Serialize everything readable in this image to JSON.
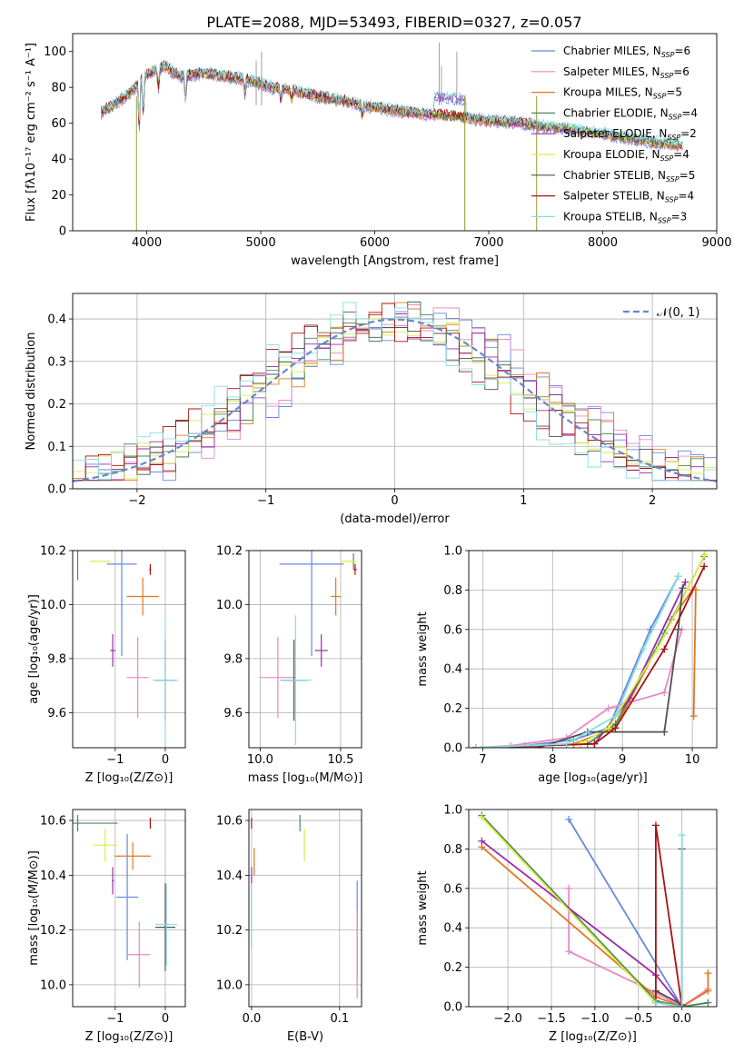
{
  "figure_title": "PLATE=2088, MJD=53493, FIBERID=0327, z=0.057",
  "colors": {
    "Chabrier MILES": "#6688dd",
    "Salpeter MILES": "#e888c8",
    "Kroupa MILES": "#e07820",
    "Chabrier ELODIE": "#4a8a5a",
    "Salpeter ELODIE": "#9a2aaa",
    "Kroupa ELODIE": "#d8ee44",
    "Chabrier STELIB": "#505050",
    "Salpeter STELIB": "#aa1111",
    "Kroupa STELIB": "#88dde4",
    "normal": "#6688cc",
    "grid": "#b0b0b0"
  },
  "legend_spectrum": [
    {
      "model": "Chabrier MILES",
      "label": "Chabrier MILES, N",
      "sub": "SSP",
      "tail": "=6"
    },
    {
      "model": "Salpeter MILES",
      "label": "Salpeter MILES, N",
      "sub": "SSP",
      "tail": "=6"
    },
    {
      "model": "Kroupa MILES",
      "label": "Kroupa MILES, N",
      "sub": "SSP",
      "tail": "=5"
    },
    {
      "model": "Chabrier ELODIE",
      "label": "Chabrier ELODIE, N",
      "sub": "SSP",
      "tail": "=4"
    },
    {
      "model": "Salpeter ELODIE",
      "label": "Salpeter ELODIE, N",
      "sub": "SSP",
      "tail": "=2"
    },
    {
      "model": "Kroupa ELODIE",
      "label": "Kroupa ELODIE, N",
      "sub": "SSP",
      "tail": "=4"
    },
    {
      "model": "Chabrier STELIB",
      "label": "Chabrier STELIB, N",
      "sub": "SSP",
      "tail": "=5"
    },
    {
      "model": "Salpeter STELIB",
      "label": "Salpeter STELIB, N",
      "sub": "SSP",
      "tail": "=4"
    },
    {
      "model": "Kroupa STELIB",
      "label": "Kroupa STELIB, N",
      "sub": "SSP",
      "tail": "=3"
    }
  ],
  "legend_normal": "𝒩(0, 1)",
  "chart_data": [
    {
      "id": "spectrum",
      "type": "line",
      "xlabel": "wavelength [Angstrom, rest frame]",
      "ylabel": "Flux [fλ10⁻¹⁷ erg cm⁻² s⁻¹ A⁻¹]",
      "xlim": [
        3350,
        9000
      ],
      "ylim": [
        0,
        110
      ],
      "xticks": [
        4000,
        5000,
        6000,
        7000,
        8000,
        9000
      ],
      "yticks": [
        0,
        20,
        40,
        60,
        80,
        100
      ],
      "grid": false,
      "legend": "right",
      "continuum": [
        [
          3600,
          66
        ],
        [
          3700,
          70
        ],
        [
          3800,
          74
        ],
        [
          3900,
          80
        ],
        [
          4000,
          87
        ],
        [
          4150,
          92
        ],
        [
          4300,
          86
        ],
        [
          4500,
          88
        ],
        [
          4700,
          86
        ],
        [
          4900,
          84
        ],
        [
          5100,
          80
        ],
        [
          5300,
          78
        ],
        [
          5500,
          75
        ],
        [
          5700,
          73
        ],
        [
          5900,
          70
        ],
        [
          6100,
          68
        ],
        [
          6300,
          66
        ],
        [
          6500,
          65
        ],
        [
          6700,
          64
        ],
        [
          6900,
          62
        ],
        [
          7100,
          61
        ],
        [
          7300,
          60
        ],
        [
          7500,
          58
        ],
        [
          7700,
          57
        ],
        [
          7900,
          55
        ],
        [
          8100,
          53
        ],
        [
          8300,
          51
        ],
        [
          8500,
          49
        ],
        [
          8700,
          48
        ]
      ],
      "deep_absorptions": [
        [
          3910,
          0
        ],
        [
          6790,
          0
        ],
        [
          7420,
          0
        ]
      ]
    },
    {
      "id": "residuals",
      "type": "area",
      "xlabel": "(data-model)/error",
      "ylabel": "Normed distribution",
      "xlim": [
        -2.5,
        2.5
      ],
      "ylim": [
        0,
        0.46
      ],
      "xticks": [
        -2,
        -1,
        0,
        1,
        2
      ],
      "yticks": [
        0.0,
        0.1,
        0.2,
        0.3,
        0.4
      ],
      "grid": true,
      "legend": "top-right",
      "bin_width": 0.1
    },
    {
      "id": "z_age",
      "type": "scatter",
      "xlabel": "Z [log₁₀(Z/Z⊙)]",
      "ylabel": "age  [log₁₀(age/yr)]",
      "xlim": [
        -1.85,
        0.4
      ],
      "ylim": [
        9.47,
        10.2
      ],
      "xticks": [
        -1,
        0
      ],
      "yticks": [
        9.6,
        9.8,
        10.0,
        10.2
      ],
      "grid": true,
      "points": [
        {
          "model": "Chabrier MILES",
          "x": -0.87,
          "y": 10.15,
          "xerr": 0.3,
          "yerr": 0.34
        },
        {
          "model": "Salpeter MILES",
          "x": -0.55,
          "y": 9.73,
          "xerr": 0.22,
          "yerr": 0.15
        },
        {
          "model": "Kroupa MILES",
          "x": -0.45,
          "y": 10.03,
          "xerr": 0.32,
          "yerr": 0.07
        },
        {
          "model": "Chabrier ELODIE",
          "x": -1.75,
          "y": 10.16,
          "xerr": 0.0,
          "yerr": 0.07
        },
        {
          "model": "Salpeter ELODIE",
          "x": -1.05,
          "y": 9.83,
          "xerr": 0.05,
          "yerr": 0.06
        },
        {
          "model": "Kroupa ELODIE",
          "x": -1.3,
          "y": 10.16,
          "xerr": 0.2,
          "yerr": 0.0
        },
        {
          "model": "Chabrier STELIB",
          "x": 0.0,
          "y": 9.72,
          "xerr": 0.2,
          "yerr": 0.15
        },
        {
          "model": "Salpeter STELIB",
          "x": -0.3,
          "y": 10.13,
          "xerr": 0.02,
          "yerr": 0.02
        },
        {
          "model": "Kroupa STELIB",
          "x": 0.0,
          "y": 9.72,
          "xerr": 0.25,
          "yerr": 0.24
        }
      ]
    },
    {
      "id": "mass_age",
      "type": "scatter",
      "xlabel": "mass [log₁₀(M/M⊙)]",
      "ylabel": "",
      "xlim": [
        9.93,
        10.63
      ],
      "ylim": [
        9.47,
        10.2
      ],
      "xticks": [
        10.0,
        10.5
      ],
      "yticks": [
        9.6,
        9.8,
        10.0,
        10.2
      ],
      "grid": true,
      "points": [
        {
          "model": "Chabrier MILES",
          "x": 10.32,
          "y": 10.15,
          "xerr": 0.2,
          "yerr": 0.34
        },
        {
          "model": "Salpeter MILES",
          "x": 10.11,
          "y": 9.73,
          "xerr": 0.11,
          "yerr": 0.15
        },
        {
          "model": "Kroupa MILES",
          "x": 10.47,
          "y": 10.03,
          "xerr": 0.03,
          "yerr": 0.07
        },
        {
          "model": "Chabrier ELODIE",
          "x": 10.58,
          "y": 10.16,
          "xerr": 0.0,
          "yerr": 0.03
        },
        {
          "model": "Salpeter ELODIE",
          "x": 10.38,
          "y": 9.83,
          "xerr": 0.04,
          "yerr": 0.06
        },
        {
          "model": "Kroupa ELODIE",
          "x": 10.55,
          "y": 10.16,
          "xerr": 0.05,
          "yerr": 0.0
        },
        {
          "model": "Chabrier STELIB",
          "x": 10.21,
          "y": 9.72,
          "xerr": 0.08,
          "yerr": 0.15
        },
        {
          "model": "Salpeter STELIB",
          "x": 10.59,
          "y": 10.13,
          "xerr": 0.01,
          "yerr": 0.02
        },
        {
          "model": "Kroupa STELIB",
          "x": 10.22,
          "y": 9.72,
          "xerr": 0.1,
          "yerr": 0.24
        }
      ]
    },
    {
      "id": "age_weight",
      "type": "line",
      "xlabel": "age  [log₁₀(age/yr)]",
      "ylabel": "mass weight",
      "xlim": [
        6.8,
        10.35
      ],
      "ylim": [
        0,
        1.0
      ],
      "xticks": [
        7,
        8,
        9,
        10
      ],
      "yticks": [
        0.0,
        0.2,
        0.4,
        0.6,
        0.8,
        1.0
      ],
      "grid": true,
      "series": [
        {
          "model": "Chabrier MILES",
          "x": [
            6.9,
            7.6,
            8.3,
            8.8,
            9.4,
            9.8
          ],
          "y": [
            0.0,
            0.01,
            0.04,
            0.1,
            0.6,
            0.87
          ]
        },
        {
          "model": "Salpeter MILES",
          "x": [
            6.9,
            7.4,
            8.2,
            8.8,
            9.6,
            9.85
          ],
          "y": [
            0.0,
            0.01,
            0.05,
            0.2,
            0.28,
            0.6
          ]
        },
        {
          "model": "Kroupa MILES",
          "x": [
            6.9,
            8.3,
            8.9,
            9.7,
            10.0,
            10.05,
            10.02
          ],
          "y": [
            0.0,
            0.02,
            0.1,
            0.65,
            0.8,
            0.8,
            0.16
          ]
        },
        {
          "model": "Chabrier ELODIE",
          "x": [
            6.9,
            8.5,
            8.9,
            9.6,
            10.17
          ],
          "y": [
            0.0,
            0.02,
            0.12,
            0.58,
            0.97
          ]
        },
        {
          "model": "Salpeter ELODIE",
          "x": [
            6.9,
            8.6,
            9.1,
            9.9
          ],
          "y": [
            0.0,
            0.02,
            0.25,
            0.84
          ]
        },
        {
          "model": "Kroupa ELODIE",
          "x": [
            6.9,
            8.4,
            8.8,
            9.5,
            10.18
          ],
          "y": [
            0.0,
            0.02,
            0.1,
            0.5,
            0.98
          ]
        },
        {
          "model": "Chabrier STELIB",
          "x": [
            6.9,
            7.8,
            8.5,
            9.6,
            9.8,
            9.86
          ],
          "y": [
            0.0,
            0.0,
            0.08,
            0.08,
            0.6,
            0.81
          ]
        },
        {
          "model": "Salpeter STELIB",
          "x": [
            6.9,
            8.6,
            8.9,
            9.6,
            10.17
          ],
          "y": [
            0.0,
            0.02,
            0.1,
            0.5,
            0.92
          ]
        },
        {
          "model": "Kroupa STELIB",
          "x": [
            6.9,
            8.2,
            8.9,
            9.3,
            9.8
          ],
          "y": [
            0.0,
            0.02,
            0.16,
            0.5,
            0.87
          ]
        }
      ]
    },
    {
      "id": "z_mass",
      "type": "scatter",
      "xlabel": "Z [log₁₀(Z/Z⊙)]",
      "ylabel": "mass [log₁₀(M/M⊙)]",
      "xlim": [
        -1.85,
        0.4
      ],
      "ylim": [
        9.92,
        10.64
      ],
      "xticks": [
        -1,
        0
      ],
      "yticks": [
        10.0,
        10.2,
        10.4,
        10.6
      ],
      "grid": true,
      "points": [
        {
          "model": "Chabrier MILES",
          "x": -0.76,
          "y": 10.32,
          "xerr": 0.22,
          "yerr": 0.23
        },
        {
          "model": "Salpeter MILES",
          "x": -0.52,
          "y": 10.11,
          "xerr": 0.22,
          "yerr": 0.12
        },
        {
          "model": "Kroupa MILES",
          "x": -0.65,
          "y": 10.47,
          "xerr": 0.36,
          "yerr": 0.05
        },
        {
          "model": "Chabrier ELODIE",
          "x": -1.75,
          "y": 10.59,
          "xerr": 0.8,
          "yerr": 0.03
        },
        {
          "model": "Salpeter ELODIE",
          "x": -1.05,
          "y": 10.38,
          "xerr": 0.02,
          "yerr": 0.05
        },
        {
          "model": "Kroupa ELODIE",
          "x": -1.2,
          "y": 10.51,
          "xerr": 0.24,
          "yerr": 0.06
        },
        {
          "model": "Chabrier STELIB",
          "x": 0.0,
          "y": 10.21,
          "xerr": 0.2,
          "yerr": 0.16
        },
        {
          "model": "Salpeter STELIB",
          "x": -0.3,
          "y": 10.59,
          "xerr": 0.01,
          "yerr": 0.02
        },
        {
          "model": "Kroupa STELIB",
          "x": 0.02,
          "y": 10.22,
          "xerr": 0.22,
          "yerr": 0.15
        }
      ]
    },
    {
      "id": "ebv_mass",
      "type": "scatter",
      "xlabel": "E(B-V)",
      "ylabel": "",
      "xlim": [
        -0.003,
        0.125
      ],
      "ylim": [
        9.92,
        10.64
      ],
      "xticks": [
        0.0,
        0.1
      ],
      "yticks": [
        10.0,
        10.2,
        10.4,
        10.6
      ],
      "grid": true,
      "points": [
        {
          "model": "Chabrier MILES",
          "x": 0.12,
          "y": 10.2,
          "xerr": 0.0,
          "yerr": 0.18
        },
        {
          "model": "Salpeter MILES",
          "x": 0.12,
          "y": 10.11,
          "xerr": 0.0,
          "yerr": 0.16
        },
        {
          "model": "Kroupa MILES",
          "x": 0.003,
          "y": 10.45,
          "xerr": 0.0,
          "yerr": 0.05
        },
        {
          "model": "Chabrier ELODIE",
          "x": 0.055,
          "y": 10.59,
          "xerr": 0.0,
          "yerr": 0.03
        },
        {
          "model": "Salpeter ELODIE",
          "x": 0.0,
          "y": 10.38,
          "xerr": 0.0,
          "yerr": 0.05
        },
        {
          "model": "Kroupa ELODIE",
          "x": 0.06,
          "y": 10.51,
          "xerr": 0.0,
          "yerr": 0.06
        },
        {
          "model": "Chabrier STELIB",
          "x": 0.0,
          "y": 10.23,
          "xerr": 0.0,
          "yerr": 0.1
        },
        {
          "model": "Salpeter STELIB",
          "x": 0.0,
          "y": 10.59,
          "xerr": 0.0,
          "yerr": 0.02
        },
        {
          "model": "Kroupa STELIB",
          "x": 0.0,
          "y": 10.25,
          "xerr": 0.0,
          "yerr": 0.12
        }
      ]
    },
    {
      "id": "z_weight",
      "type": "line",
      "xlabel": "Z [log₁₀(Z/Z⊙)]",
      "ylabel": "mass weight",
      "xlim": [
        -2.45,
        0.4
      ],
      "ylim": [
        0,
        1.0
      ],
      "xticks": [
        -2.0,
        -1.5,
        -1.0,
        -0.5,
        0.0
      ],
      "yticks": [
        0.0,
        0.2,
        0.4,
        0.6,
        0.8,
        1.0
      ],
      "grid": true,
      "series": [
        {
          "model": "Chabrier MILES",
          "x": [
            -1.3,
            0.0
          ],
          "y": [
            0.95,
            0.0
          ]
        },
        {
          "model": "Salpeter MILES",
          "x": [
            -1.3,
            -1.3,
            -0.3,
            0.0,
            0.3
          ],
          "y": [
            0.6,
            0.28,
            0.07,
            0.0,
            0.09
          ]
        },
        {
          "model": "Kroupa MILES",
          "x": [
            -2.3,
            -0.3,
            0.0,
            0.3,
            0.3
          ],
          "y": [
            0.81,
            0.05,
            0.0,
            0.08,
            0.17
          ]
        },
        {
          "model": "Chabrier ELODIE",
          "x": [
            -2.3,
            -0.3,
            0.0,
            0.3
          ],
          "y": [
            0.97,
            0.03,
            0.0,
            0.02
          ]
        },
        {
          "model": "Salpeter ELODIE",
          "x": [
            -2.3,
            -0.3,
            0.0
          ],
          "y": [
            0.84,
            0.16,
            0.0
          ]
        },
        {
          "model": "Kroupa ELODIE",
          "x": [
            -2.3,
            -0.3,
            0.0
          ],
          "y": [
            0.96,
            0.02,
            0.0
          ]
        },
        {
          "model": "Chabrier STELIB",
          "x": [
            -0.3,
            0.0,
            0.0
          ],
          "y": [
            0.08,
            0.01,
            0.8
          ]
        },
        {
          "model": "Salpeter STELIB",
          "x": [
            -0.3,
            -0.3,
            0.0
          ],
          "y": [
            0.02,
            0.92,
            0.0
          ]
        },
        {
          "model": "Kroupa STELIB",
          "x": [
            0.0,
            0.0,
            -0.3
          ],
          "y": [
            0.87,
            0.0,
            0.02
          ]
        }
      ]
    }
  ]
}
